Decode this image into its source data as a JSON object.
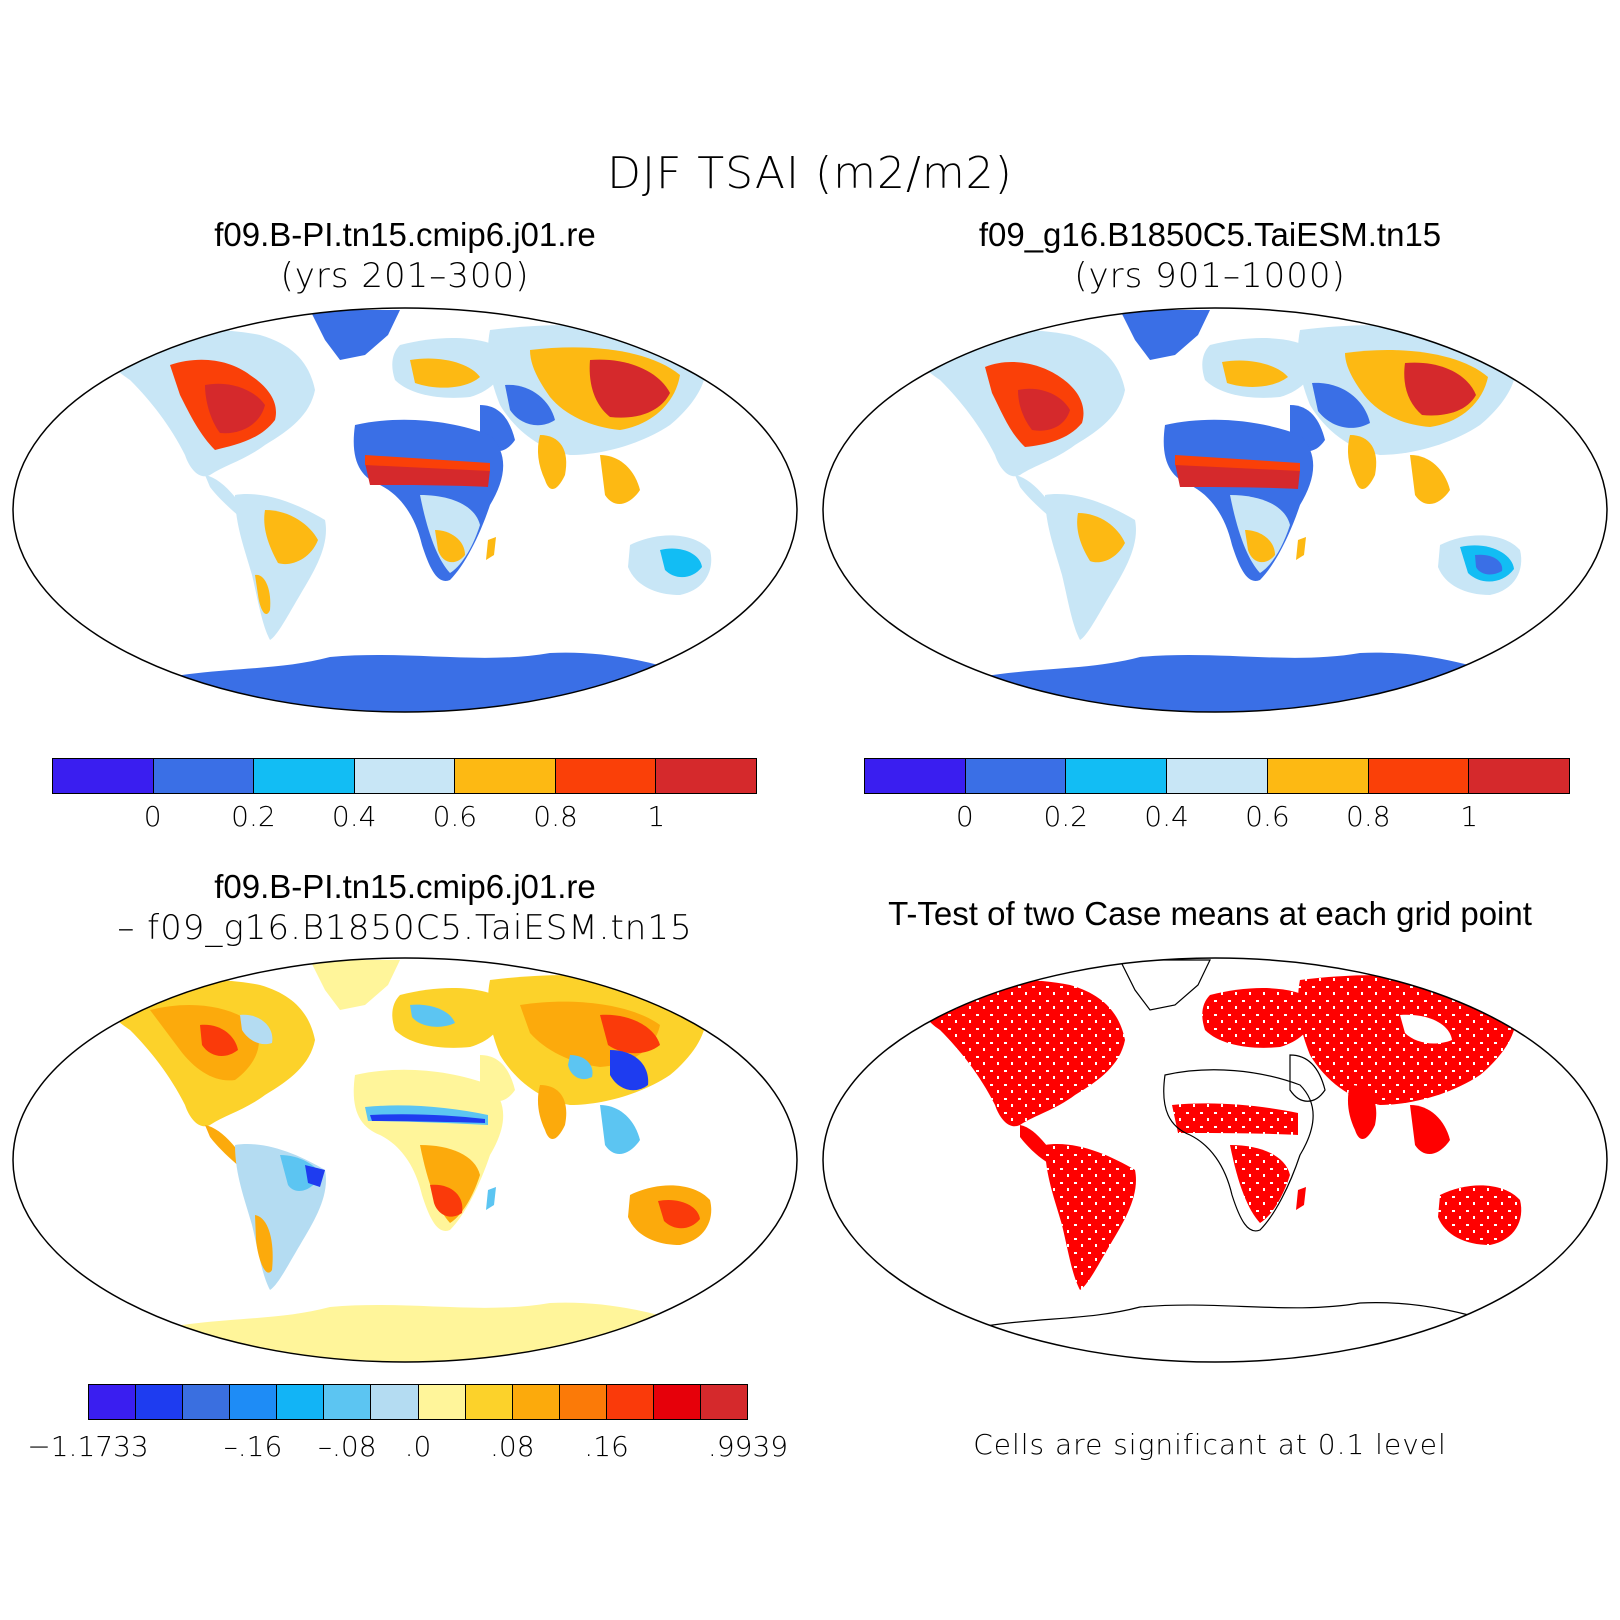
{
  "title": "DJF TSAI (m2/m2)",
  "panels": {
    "top_left": {
      "title": "f09.B-PI.tn15.cmip6.j01.re",
      "subtitle": "(yrs 201–300)"
    },
    "top_right": {
      "title": "f09_g16.B1850C5.TaiESM.tn15",
      "subtitle": "(yrs 901–1000)"
    },
    "bottom_left": {
      "title": "f09.B-PI.tn15.cmip6.j01.re",
      "subtitle": "– f09_g16.B1850C5.TaiESM.tn15"
    },
    "bottom_right": {
      "title": "T-Test of two Case means at each grid point",
      "note": "Cells are significant at 0.1 level"
    }
  },
  "colorbars": {
    "case": {
      "colors": [
        "#3a1ef0",
        "#3a6fe6",
        "#12bdf4",
        "#c8e6f6",
        "#fdb913",
        "#fa4008",
        "#d5292c"
      ],
      "tick_labels": [
        "0",
        "0.2",
        "0.4",
        "0.6",
        "0.8",
        "1"
      ]
    },
    "diff": {
      "colors": [
        "#3a1ef0",
        "#1e3cf0",
        "#3a6fe0",
        "#1e8cf6",
        "#12b4f6",
        "#5cc5f2",
        "#b4dcf2",
        "#fff59a",
        "#fcd22a",
        "#fcaa0c",
        "#fb7a08",
        "#fa3a0a",
        "#e6000a",
        "#d5292c"
      ],
      "tick_labels": [
        "−1.1733",
        "–.16",
        "–.08",
        ".0",
        ".08",
        ".16",
        ".9939"
      ]
    }
  },
  "map_colors": {
    "ocean": "#ffffff",
    "coast": "#000000",
    "significant": "#ff0000"
  }
}
